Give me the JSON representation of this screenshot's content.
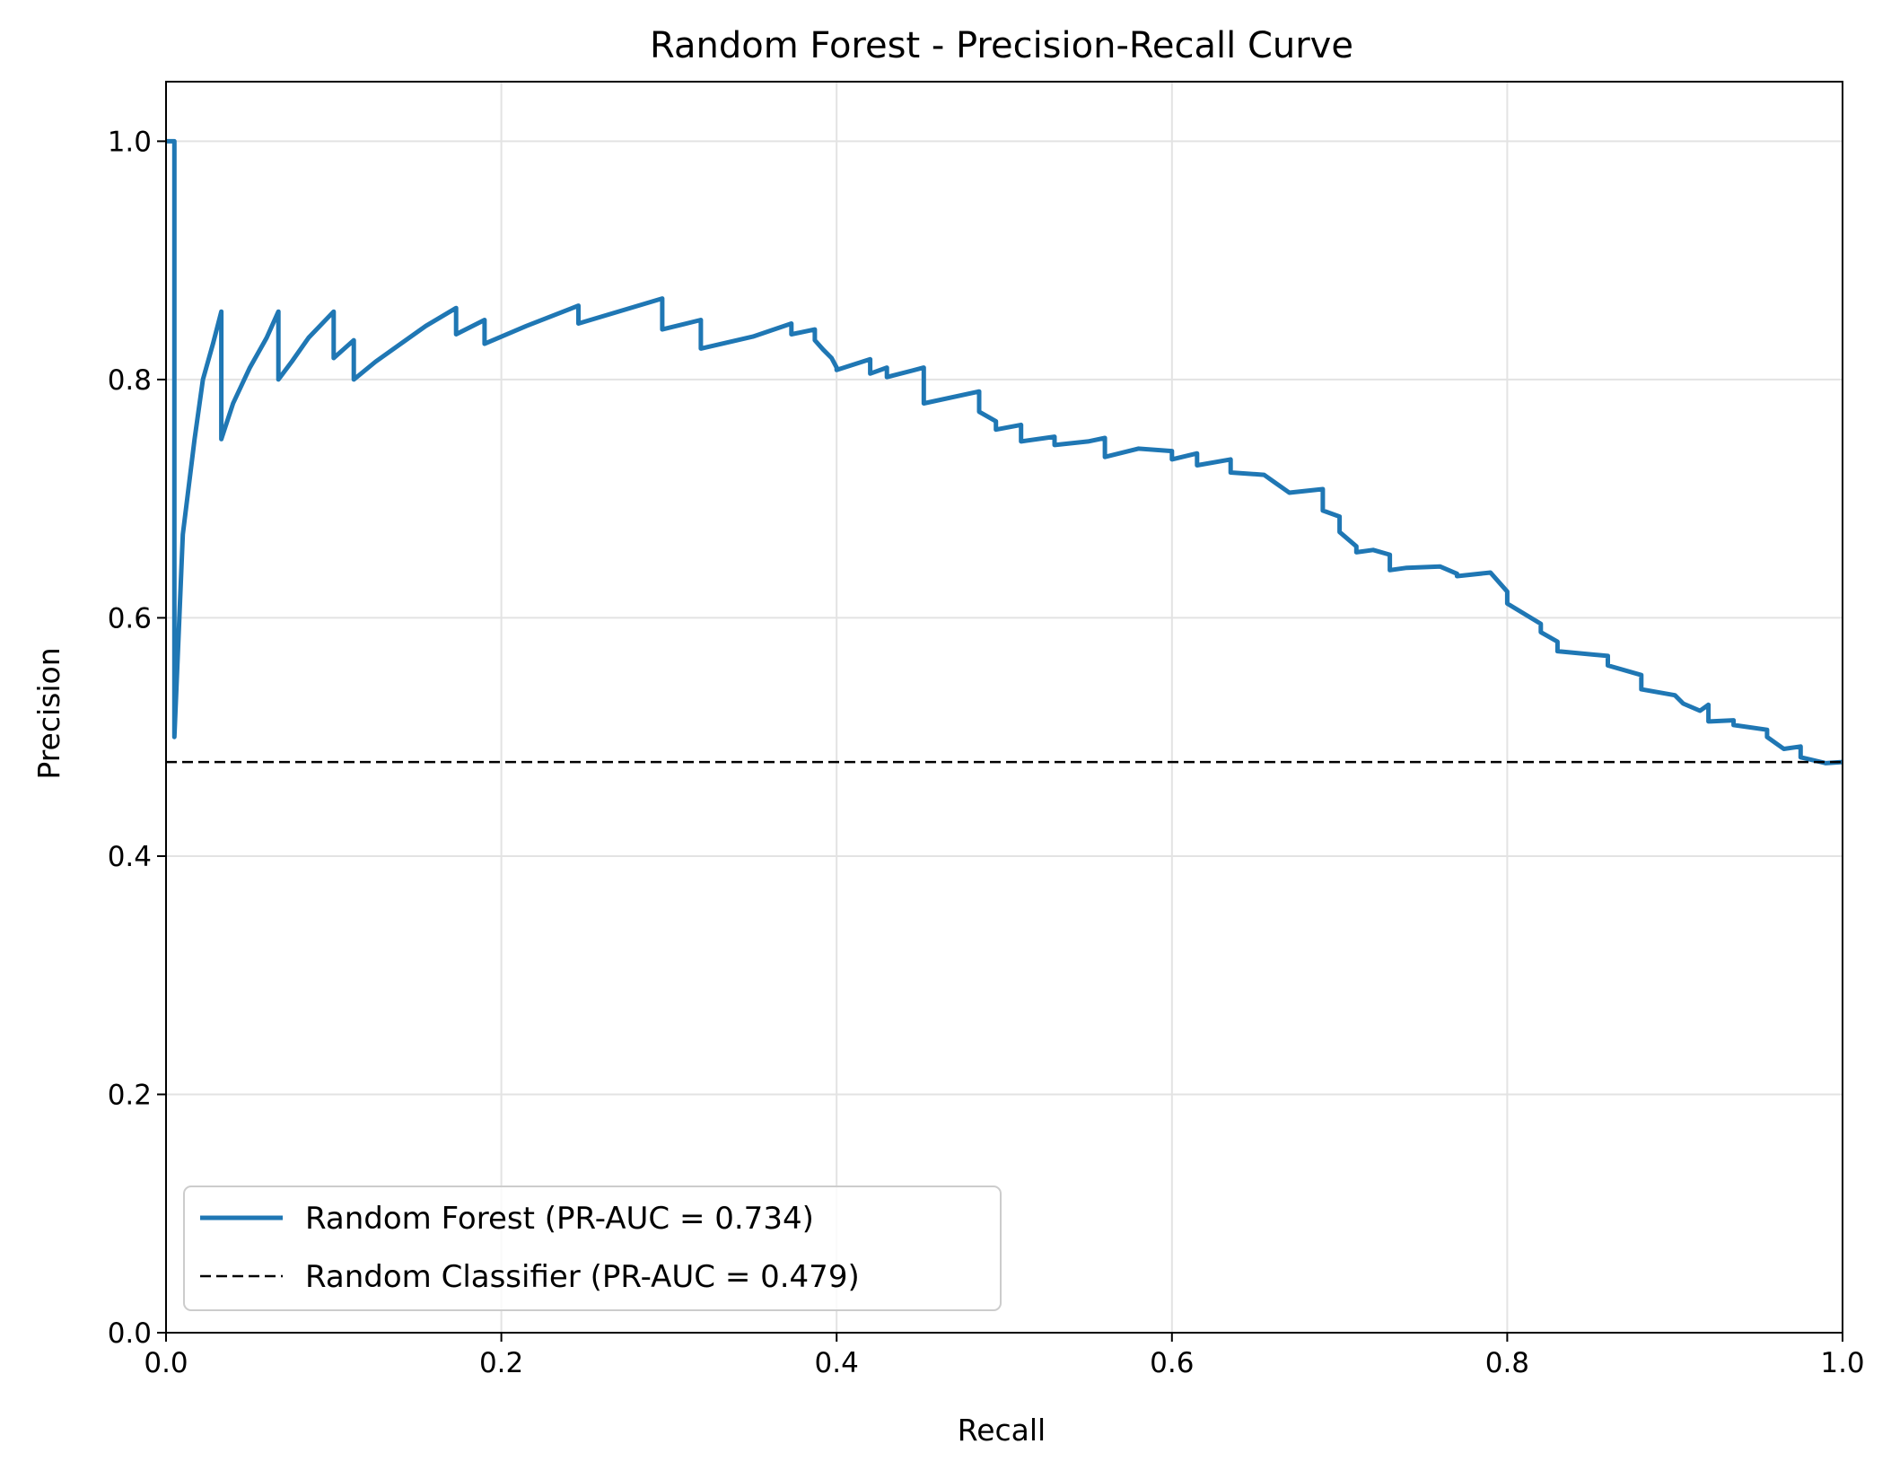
{
  "chart_data": {
    "type": "line",
    "title": "Random Forest - Precision-Recall Curve",
    "xlabel": "Recall",
    "ylabel": "Precision",
    "xlim": [
      0.0,
      1.0
    ],
    "ylim": [
      0.0,
      1.05
    ],
    "xticks": [
      "0.0",
      "0.2",
      "0.4",
      "0.6",
      "0.8",
      "1.0"
    ],
    "yticks": [
      "0.0",
      "0.2",
      "0.4",
      "0.6",
      "0.8",
      "1.0"
    ],
    "grid": true,
    "legend_position": "lower-left",
    "series": [
      {
        "name": "Random Forest (PR-AUC = 0.734)",
        "color": "#1f77b4",
        "style": "solid",
        "x": [
          0.0,
          0.005,
          0.005,
          0.01,
          0.017,
          0.022,
          0.028,
          0.033,
          0.033,
          0.04,
          0.05,
          0.06,
          0.067,
          0.067,
          0.075,
          0.085,
          0.1,
          0.1,
          0.112,
          0.112,
          0.125,
          0.14,
          0.155,
          0.173,
          0.173,
          0.19,
          0.19,
          0.215,
          0.246,
          0.246,
          0.296,
          0.296,
          0.319,
          0.319,
          0.35,
          0.373,
          0.373,
          0.387,
          0.387,
          0.392,
          0.397,
          0.4,
          0.4,
          0.42,
          0.42,
          0.43,
          0.43,
          0.452,
          0.452,
          0.485,
          0.485,
          0.495,
          0.495,
          0.51,
          0.51,
          0.53,
          0.53,
          0.55,
          0.56,
          0.56,
          0.58,
          0.6,
          0.6,
          0.615,
          0.615,
          0.635,
          0.635,
          0.655,
          0.66,
          0.67,
          0.69,
          0.69,
          0.7,
          0.7,
          0.71,
          0.71,
          0.72,
          0.73,
          0.73,
          0.74,
          0.76,
          0.77,
          0.77,
          0.79,
          0.8,
          0.8,
          0.82,
          0.82,
          0.83,
          0.83,
          0.86,
          0.86,
          0.88,
          0.88,
          0.9,
          0.905,
          0.915,
          0.92,
          0.92,
          0.935,
          0.935,
          0.955,
          0.955,
          0.965,
          0.975,
          0.975,
          0.99,
          1.0
        ],
        "y": [
          1.0,
          1.0,
          0.5,
          0.67,
          0.75,
          0.8,
          0.83,
          0.857,
          0.75,
          0.78,
          0.81,
          0.835,
          0.857,
          0.8,
          0.815,
          0.835,
          0.857,
          0.818,
          0.833,
          0.8,
          0.815,
          0.83,
          0.845,
          0.86,
          0.838,
          0.85,
          0.83,
          0.845,
          0.862,
          0.847,
          0.868,
          0.842,
          0.85,
          0.826,
          0.836,
          0.847,
          0.838,
          0.842,
          0.833,
          0.825,
          0.818,
          0.81,
          0.808,
          0.817,
          0.805,
          0.81,
          0.802,
          0.81,
          0.78,
          0.79,
          0.773,
          0.765,
          0.758,
          0.762,
          0.748,
          0.752,
          0.745,
          0.748,
          0.751,
          0.735,
          0.742,
          0.74,
          0.733,
          0.738,
          0.728,
          0.733,
          0.722,
          0.72,
          0.715,
          0.705,
          0.708,
          0.69,
          0.685,
          0.672,
          0.66,
          0.655,
          0.657,
          0.653,
          0.64,
          0.642,
          0.643,
          0.637,
          0.635,
          0.638,
          0.622,
          0.612,
          0.595,
          0.588,
          0.58,
          0.572,
          0.568,
          0.56,
          0.552,
          0.54,
          0.535,
          0.528,
          0.522,
          0.527,
          0.513,
          0.514,
          0.51,
          0.506,
          0.5,
          0.49,
          0.492,
          0.483,
          0.478,
          0.479
        ]
      },
      {
        "name": "Random Classifier (PR-AUC = 0.479)",
        "color": "#000000",
        "style": "dashed",
        "x": [
          0.0,
          1.0
        ],
        "y": [
          0.479,
          0.479
        ]
      }
    ]
  }
}
